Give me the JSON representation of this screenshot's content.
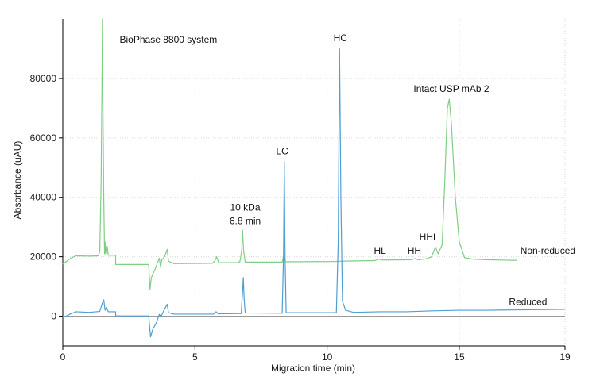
{
  "chart_data": {
    "type": "line",
    "xlabel": "Migration time (min)",
    "ylabel": "Absorbance (uAU)",
    "xlim": [
      0,
      19
    ],
    "ylim": [
      -10000,
      100000
    ],
    "x_ticks": [
      0,
      5,
      10,
      15,
      19
    ],
    "y_ticks": [
      0,
      20000,
      40000,
      60000,
      80000
    ],
    "grid": true,
    "series": [
      {
        "name": "Non-reduced",
        "color": "#7ecf84",
        "points": [
          [
            0.0,
            17500
          ],
          [
            0.3,
            19500
          ],
          [
            0.5,
            20300
          ],
          [
            1.0,
            20200
          ],
          [
            1.35,
            20300
          ],
          [
            1.4,
            22000
          ],
          [
            1.45,
            45000
          ],
          [
            1.48,
            75000
          ],
          [
            1.5,
            100000
          ],
          [
            1.52,
            70000
          ],
          [
            1.55,
            40000
          ],
          [
            1.58,
            21000
          ],
          [
            1.6,
            25000
          ],
          [
            1.62,
            21000
          ],
          [
            1.65,
            21000
          ],
          [
            1.68,
            23500
          ],
          [
            1.72,
            20500
          ],
          [
            1.9,
            20500
          ],
          [
            2.0,
            20500
          ],
          [
            2.0,
            17400
          ],
          [
            3.25,
            17400
          ],
          [
            3.3,
            9000
          ],
          [
            3.35,
            13000
          ],
          [
            3.5,
            16000
          ],
          [
            3.65,
            19500
          ],
          [
            3.7,
            16500
          ],
          [
            3.75,
            19000
          ],
          [
            3.85,
            20000
          ],
          [
            3.95,
            22500
          ],
          [
            4.0,
            18500
          ],
          [
            4.2,
            17700
          ],
          [
            5.65,
            17800
          ],
          [
            5.75,
            18500
          ],
          [
            5.82,
            20000
          ],
          [
            5.9,
            18000
          ],
          [
            6.6,
            18000
          ],
          [
            6.7,
            18300
          ],
          [
            6.77,
            22000
          ],
          [
            6.8,
            29000
          ],
          [
            6.84,
            22000
          ],
          [
            6.9,
            18200
          ],
          [
            8.3,
            18200
          ],
          [
            8.35,
            20000
          ],
          [
            8.38,
            20500
          ],
          [
            8.42,
            18300
          ],
          [
            10.3,
            18400
          ],
          [
            10.5,
            18500
          ],
          [
            11.8,
            18700
          ],
          [
            11.95,
            19200
          ],
          [
            12.1,
            18900
          ],
          [
            13.2,
            19000
          ],
          [
            13.32,
            19400
          ],
          [
            13.45,
            19000
          ],
          [
            13.75,
            19300
          ],
          [
            13.95,
            20000
          ],
          [
            14.1,
            23200
          ],
          [
            14.2,
            21000
          ],
          [
            14.35,
            24000
          ],
          [
            14.45,
            45000
          ],
          [
            14.55,
            70000
          ],
          [
            14.62,
            73000
          ],
          [
            14.7,
            65000
          ],
          [
            14.85,
            40000
          ],
          [
            15.0,
            25000
          ],
          [
            15.2,
            19700
          ],
          [
            15.5,
            19200
          ],
          [
            16.0,
            19000
          ],
          [
            17.0,
            18800
          ],
          [
            17.2,
            18800
          ]
        ]
      },
      {
        "name": "Reduced",
        "color": "#4f9fd3",
        "points": [
          [
            0.0,
            -500
          ],
          [
            0.3,
            800
          ],
          [
            0.5,
            1500
          ],
          [
            1.0,
            1300
          ],
          [
            1.4,
            1600
          ],
          [
            1.5,
            4500
          ],
          [
            1.55,
            5500
          ],
          [
            1.6,
            2000
          ],
          [
            1.65,
            3000
          ],
          [
            1.72,
            1500
          ],
          [
            2.0,
            1500
          ],
          [
            2.0,
            100
          ],
          [
            3.25,
            100
          ],
          [
            3.32,
            -7000
          ],
          [
            3.4,
            -4500
          ],
          [
            3.55,
            -2000
          ],
          [
            3.65,
            600
          ],
          [
            3.72,
            -200
          ],
          [
            3.8,
            1500
          ],
          [
            3.95,
            4000
          ],
          [
            4.0,
            1200
          ],
          [
            4.2,
            700
          ],
          [
            5.7,
            700
          ],
          [
            5.8,
            1500
          ],
          [
            5.88,
            800
          ],
          [
            6.75,
            900
          ],
          [
            6.8,
            8000
          ],
          [
            6.83,
            13000
          ],
          [
            6.86,
            6000
          ],
          [
            6.9,
            1100
          ],
          [
            8.3,
            1000
          ],
          [
            8.35,
            20000
          ],
          [
            8.38,
            52000
          ],
          [
            8.41,
            20000
          ],
          [
            8.45,
            1200
          ],
          [
            10.35,
            1200
          ],
          [
            10.42,
            25000
          ],
          [
            10.47,
            90000
          ],
          [
            10.52,
            40000
          ],
          [
            10.58,
            5000
          ],
          [
            10.7,
            2000
          ],
          [
            11.0,
            1300
          ],
          [
            12.0,
            1500
          ],
          [
            13.0,
            1500
          ],
          [
            14.0,
            1800
          ],
          [
            15.0,
            2000
          ],
          [
            16.0,
            2000
          ],
          [
            17.0,
            2100
          ],
          [
            18.0,
            2200
          ],
          [
            19.0,
            2300
          ]
        ]
      }
    ],
    "annotations": [
      {
        "id": "system",
        "text": "BioPhase 8800 system",
        "x": 2.15,
        "y": 92000,
        "anchor": "start"
      },
      {
        "id": "hc",
        "text": "HC",
        "x": 10.5,
        "y": 92500,
        "anchor": "middle"
      },
      {
        "id": "intact",
        "text": "Intact USP mAb 2",
        "x": 14.7,
        "y": 75500,
        "anchor": "middle"
      },
      {
        "id": "lc",
        "text": "LC",
        "x": 8.3,
        "y": 54500,
        "anchor": "middle"
      },
      {
        "id": "10kda",
        "text": "10 kDa",
        "x": 6.9,
        "y": 35500,
        "anchor": "middle"
      },
      {
        "id": "68min",
        "text": "6.8 min",
        "x": 6.9,
        "y": 31000,
        "anchor": "middle"
      },
      {
        "id": "hl",
        "text": "HL",
        "x": 12.0,
        "y": 21000,
        "anchor": "middle"
      },
      {
        "id": "hh",
        "text": "HH",
        "x": 13.3,
        "y": 21000,
        "anchor": "middle"
      },
      {
        "id": "hhl",
        "text": "HHL",
        "x": 13.85,
        "y": 25500,
        "anchor": "middle"
      },
      {
        "id": "nonreduced",
        "text": "Non-reduced",
        "x": 18.35,
        "y": 21000,
        "anchor": "middle"
      },
      {
        "id": "reduced",
        "text": "Reduced",
        "x": 17.6,
        "y": 3800,
        "anchor": "middle"
      }
    ]
  }
}
